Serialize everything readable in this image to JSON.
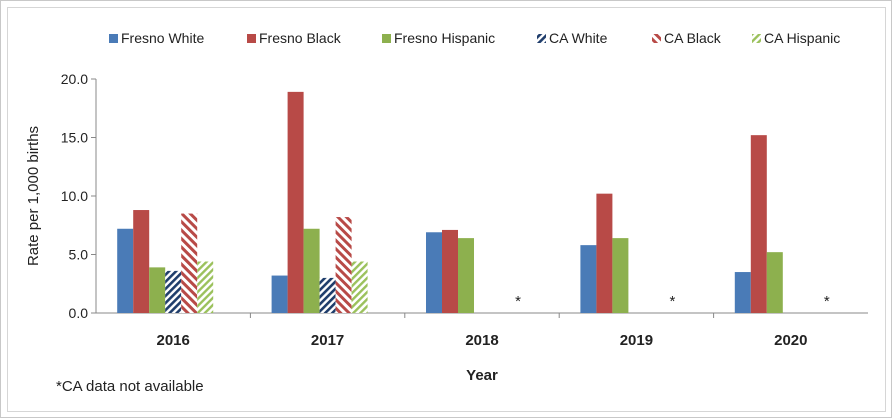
{
  "chart_data": {
    "type": "bar",
    "categories": [
      "2016",
      "2017",
      "2018",
      "2019",
      "2020"
    ],
    "xlabel": "Year",
    "ylabel": "Rate per 1,000 births",
    "ylim": [
      0,
      20
    ],
    "yticks": [
      "0.0",
      "5.0",
      "10.0",
      "15.0",
      "20.0"
    ],
    "grid": false,
    "legend_position": "top",
    "series": [
      {
        "name": "Fresno White",
        "values": [
          7.2,
          3.2,
          6.9,
          5.8,
          3.5
        ],
        "color": "#4a7bb7",
        "pattern": "solid"
      },
      {
        "name": "Fresno Black",
        "values": [
          8.8,
          18.9,
          7.1,
          10.2,
          15.2
        ],
        "color": "#b84a47",
        "pattern": "solid"
      },
      {
        "name": "Fresno Hispanic",
        "values": [
          3.9,
          7.2,
          6.4,
          6.4,
          5.2
        ],
        "color": "#8db04e",
        "pattern": "solid"
      },
      {
        "name": "CA White",
        "values": [
          3.6,
          3.0,
          null,
          null,
          null
        ],
        "color": "#1f3d6b",
        "pattern": "hatch"
      },
      {
        "name": "CA Black",
        "values": [
          8.5,
          8.2,
          null,
          null,
          null
        ],
        "color": "#b84a47",
        "pattern": "hatch"
      },
      {
        "name": "CA Hispanic",
        "values": [
          4.4,
          4.4,
          null,
          null,
          null
        ],
        "color": "#a3c46a",
        "pattern": "hatch"
      }
    ],
    "missing_marker": "*",
    "footnote": "*CA data not available"
  }
}
